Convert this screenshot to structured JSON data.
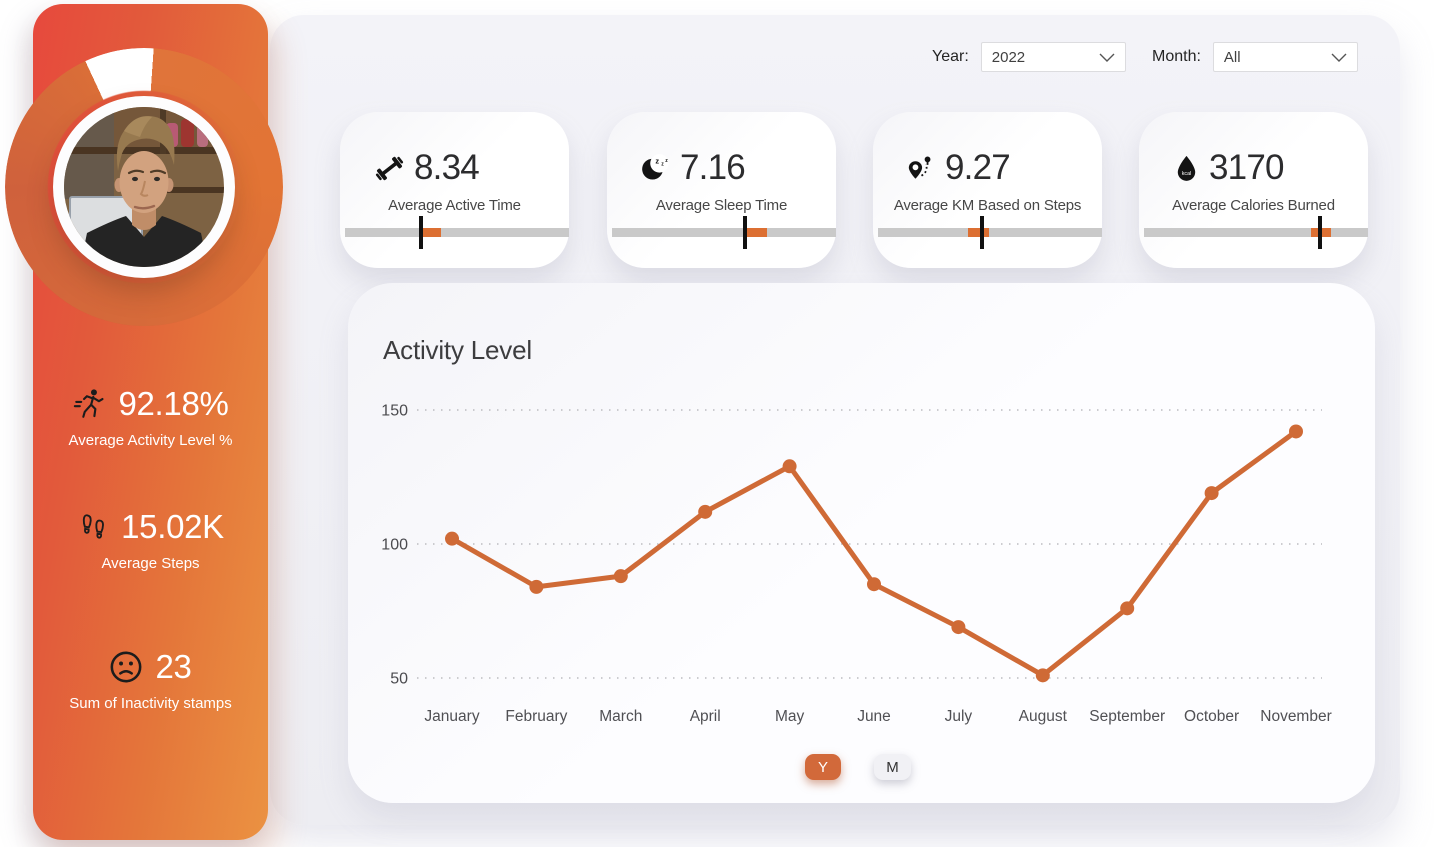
{
  "filters": {
    "year_label": "Year:",
    "year_value": "2022",
    "month_label": "Month:",
    "month_value": "All"
  },
  "profile": {
    "ring_percent": 92.18,
    "stats": [
      {
        "icon": "runner-icon",
        "value": "92.18%",
        "label": "Average Activity Level %"
      },
      {
        "icon": "footsteps-icon",
        "value": "15.02K",
        "label": "Average Steps"
      },
      {
        "icon": "sad-face-icon",
        "value": "23",
        "label": "Sum of Inactivity stamps"
      }
    ]
  },
  "kpis": [
    {
      "icon": "dumbbell-icon",
      "value": "8.34",
      "label": "Average Active Time",
      "bar": {
        "orange_start": 0.348,
        "orange_end": 0.43,
        "marker": 0.339
      }
    },
    {
      "icon": "moon-icon",
      "value": "7.16",
      "label": "Average Sleep Time",
      "bar": {
        "orange_start": 0.595,
        "orange_end": 0.691,
        "marker": 0.595
      }
    },
    {
      "icon": "map-pin-icon",
      "value": "9.27",
      "label": "Average KM Based on Steps",
      "bar": {
        "orange_start": 0.4,
        "orange_end": 0.496,
        "marker": 0.464
      }
    },
    {
      "icon": "kcal-drop-icon",
      "value": "3170",
      "label": "Average Calories Burned",
      "bar": {
        "orange_start": 0.744,
        "orange_end": 0.837,
        "marker": 0.786
      }
    }
  ],
  "chart_data": {
    "type": "line",
    "title": "Activity Level",
    "categories": [
      "January",
      "February",
      "March",
      "April",
      "May",
      "June",
      "July",
      "August",
      "September",
      "October",
      "November"
    ],
    "values": [
      102,
      84,
      88,
      112,
      129,
      85,
      69,
      51,
      76,
      119,
      142
    ],
    "yticks": [
      50,
      100,
      150
    ],
    "ylim": [
      35,
      160
    ],
    "xlabel": "",
    "ylabel": "",
    "grid": "dotted",
    "legend": "none",
    "line_color": "#cf6a36"
  },
  "toggle": {
    "year": "Y",
    "month": "M",
    "selected": "Y"
  },
  "colors": {
    "accent": "#d2693a",
    "gauge": "#dc6f32",
    "sidebar_top": "#e7493d",
    "sidebar_bottom": "#eb9242"
  }
}
